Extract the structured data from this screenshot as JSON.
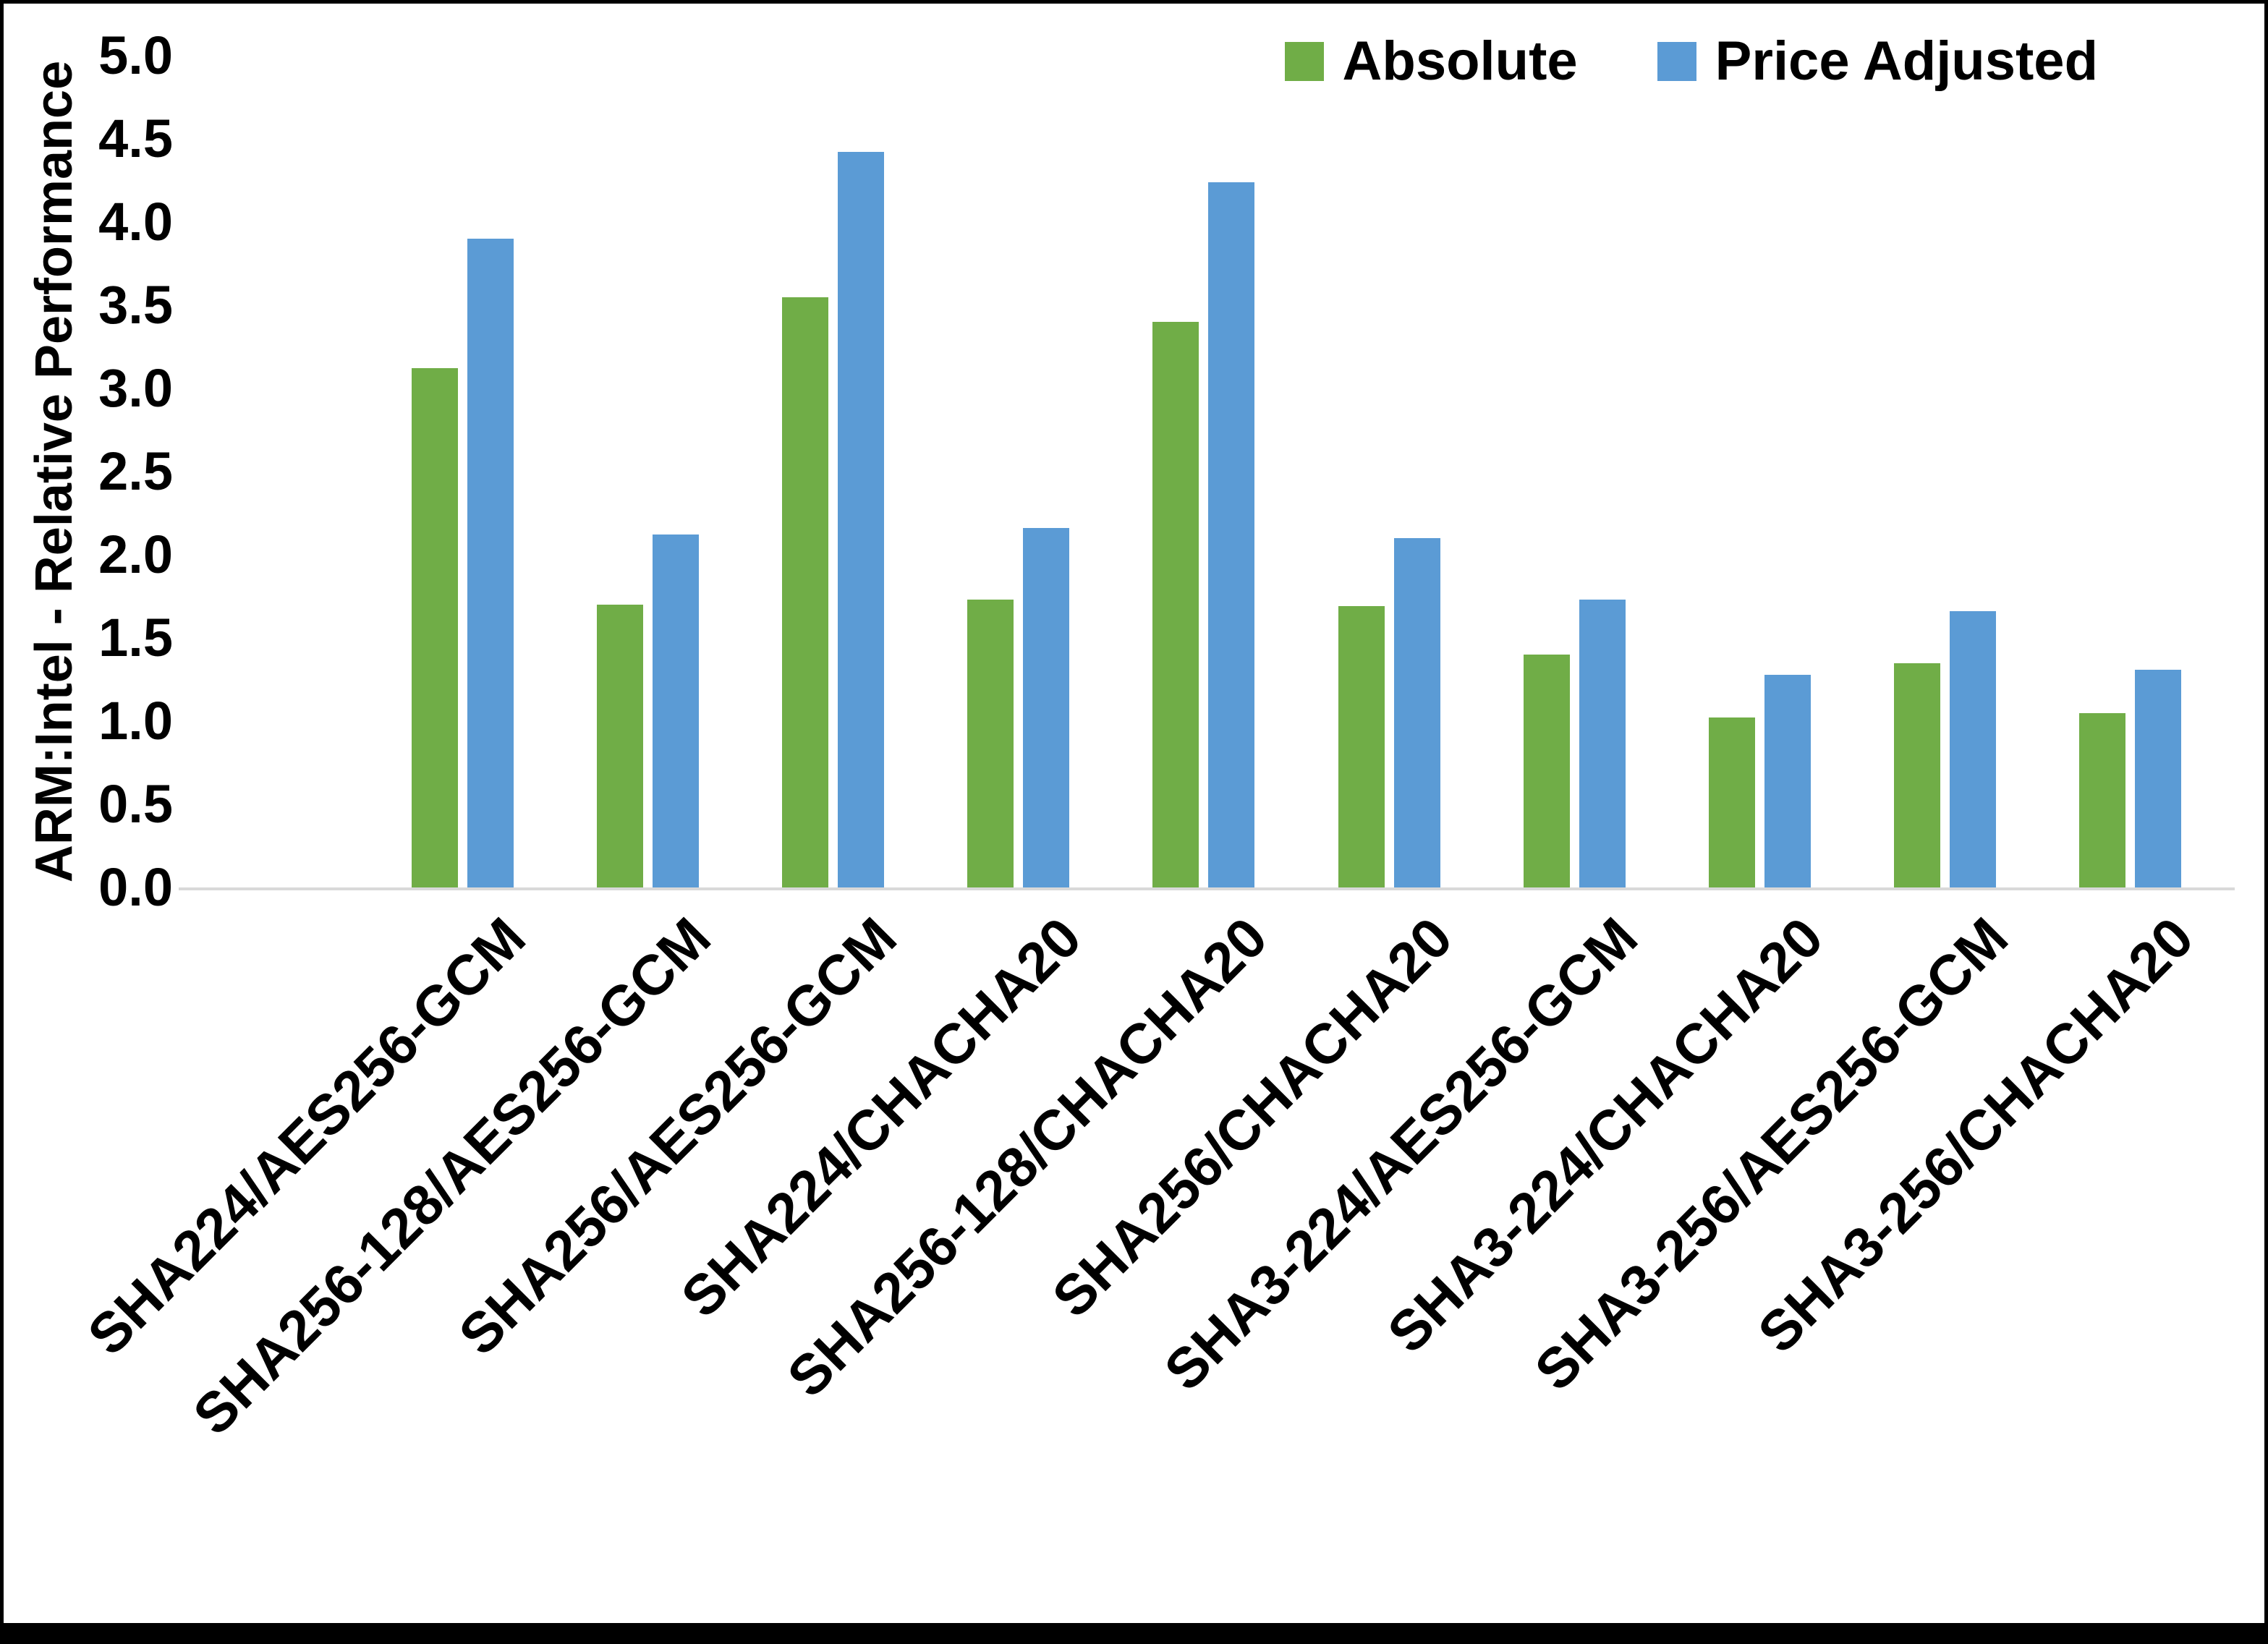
{
  "colors": {
    "absolute": "#70AD47",
    "price_adjusted": "#5B9BD5",
    "axis_line": "#D9D9D9",
    "text": "#000000",
    "frame": "#000000"
  },
  "legend": {
    "items": [
      {
        "label": "Absolute",
        "color": "#70AD47"
      },
      {
        "label": "Price Adjusted",
        "color": "#5B9BD5"
      }
    ],
    "position": "top-right"
  },
  "y_axis": {
    "title": "ARM:Intel - Relative Performance",
    "min": 0,
    "max": 5,
    "step": 0.5,
    "tick_decimals": 1,
    "tick_labels": [
      "5.0",
      "4.5",
      "4.0",
      "3.5",
      "3.0",
      "2.5",
      "2.0",
      "1.5",
      "1.0",
      "0.5",
      "0.0"
    ]
  },
  "chart_data": {
    "type": "bar",
    "title": "",
    "xlabel": "",
    "ylabel": "ARM:Intel - Relative Performance",
    "ylim": [
      0,
      5
    ],
    "grid": false,
    "legend_position": "top-right",
    "categories": [
      "SHA224/AES256-GCM",
      "SHA256-128/AES256-GCM",
      "SHA256/AES256-GCM",
      "SHA224/CHACHA20",
      "SHA256-128/CHACHA20",
      "SHA256/CHACHA20",
      "SHA3-224/AES256-GCM",
      "SHA3-224/CHACHA20",
      "SHA3-256/AES256-GCM",
      "SHA3-256/CHACHA20"
    ],
    "series": [
      {
        "name": "Absolute",
        "color": "#70AD47",
        "values": [
          3.12,
          1.7,
          3.55,
          1.73,
          3.4,
          1.69,
          1.4,
          1.02,
          1.35,
          1.05
        ]
      },
      {
        "name": "Price Adjusted",
        "color": "#5B9BD5",
        "values": [
          3.9,
          2.12,
          4.42,
          2.16,
          4.24,
          2.1,
          1.73,
          1.28,
          1.66,
          1.31
        ]
      }
    ]
  }
}
